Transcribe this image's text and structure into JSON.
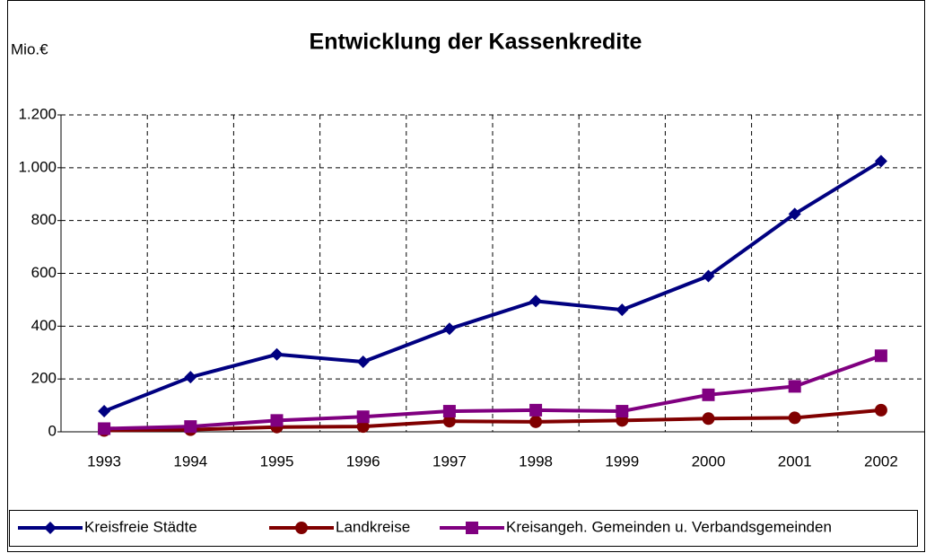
{
  "chart_data": {
    "type": "line",
    "title": "Entwicklung der Kassenkredite",
    "y_label": "Mio.€",
    "categories": [
      "1993",
      "1994",
      "1995",
      "1996",
      "1997",
      "1998",
      "1999",
      "2000",
      "2001",
      "2002"
    ],
    "series": [
      {
        "name": "Kreisfreie Städte",
        "color": "#000080",
        "marker": "diamond",
        "values": [
          78,
          207,
          293,
          265,
          390,
          495,
          462,
          590,
          825,
          1025
        ]
      },
      {
        "name": "Landkreise",
        "color": "#800000",
        "marker": "circle",
        "values": [
          5,
          8,
          18,
          20,
          40,
          38,
          43,
          50,
          53,
          82
        ]
      },
      {
        "name": "Kreisangeh. Gemeinden u. Verbandsgemeinden",
        "color": "#800080",
        "marker": "square",
        "values": [
          12,
          20,
          43,
          57,
          78,
          82,
          78,
          140,
          172,
          288
        ]
      }
    ],
    "ylim": [
      0,
      1200
    ],
    "yticks": [
      0,
      200,
      400,
      600,
      800,
      {
        "value": 1000,
        "label": "1.000"
      },
      {
        "value": 1200,
        "label": "1.200"
      }
    ],
    "grid": true,
    "legend": "bottom"
  }
}
